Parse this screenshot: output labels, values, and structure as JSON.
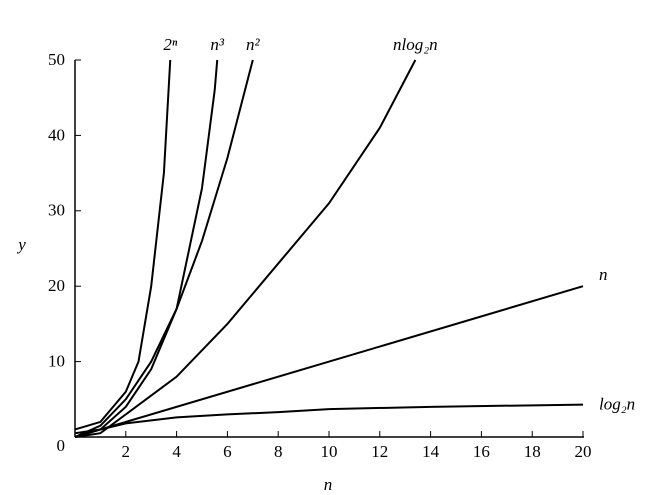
{
  "chart_data": {
    "type": "line",
    "xlabel": "n",
    "ylabel": "y",
    "xlim": [
      0,
      20
    ],
    "ylim": [
      0,
      50
    ],
    "xticks": [
      2,
      4,
      6,
      8,
      10,
      12,
      14,
      16,
      18,
      20
    ],
    "yticks": [
      0,
      10,
      20,
      30,
      40,
      50
    ],
    "series": [
      {
        "name": "2ⁿ",
        "color": "#000000",
        "x": [
          0,
          1,
          2,
          2.5,
          3,
          3.5,
          3.75
        ],
        "values": [
          1,
          2,
          6,
          10,
          20,
          35,
          50
        ]
      },
      {
        "name": "n³",
        "color": "#000000",
        "x": [
          0,
          1,
          2,
          3,
          4,
          5,
          5.5,
          5.6
        ],
        "values": [
          0,
          1,
          4,
          9,
          17,
          33,
          46,
          50
        ]
      },
      {
        "name": "n²",
        "color": "#000000",
        "x": [
          0,
          1,
          2,
          3,
          4,
          5,
          6,
          7
        ],
        "values": [
          0,
          1.5,
          5,
          10,
          17,
          26,
          37,
          50
        ]
      },
      {
        "name": "nlog₂n",
        "color": "#000000",
        "x": [
          0,
          1,
          2,
          4,
          6,
          8,
          10,
          12,
          13.4
        ],
        "values": [
          0,
          0.5,
          3,
          8,
          15,
          23,
          31,
          41,
          50
        ]
      },
      {
        "name": "n",
        "color": "#000000",
        "x": [
          0,
          1,
          20
        ],
        "values": [
          0,
          1,
          20
        ]
      },
      {
        "name": "log₂n",
        "color": "#000000",
        "x": [
          0,
          1,
          2,
          4,
          6,
          8,
          10,
          14,
          20
        ],
        "values": [
          0.5,
          1,
          1.8,
          2.6,
          3,
          3.3,
          3.7,
          4,
          4.3
        ]
      }
    ]
  }
}
